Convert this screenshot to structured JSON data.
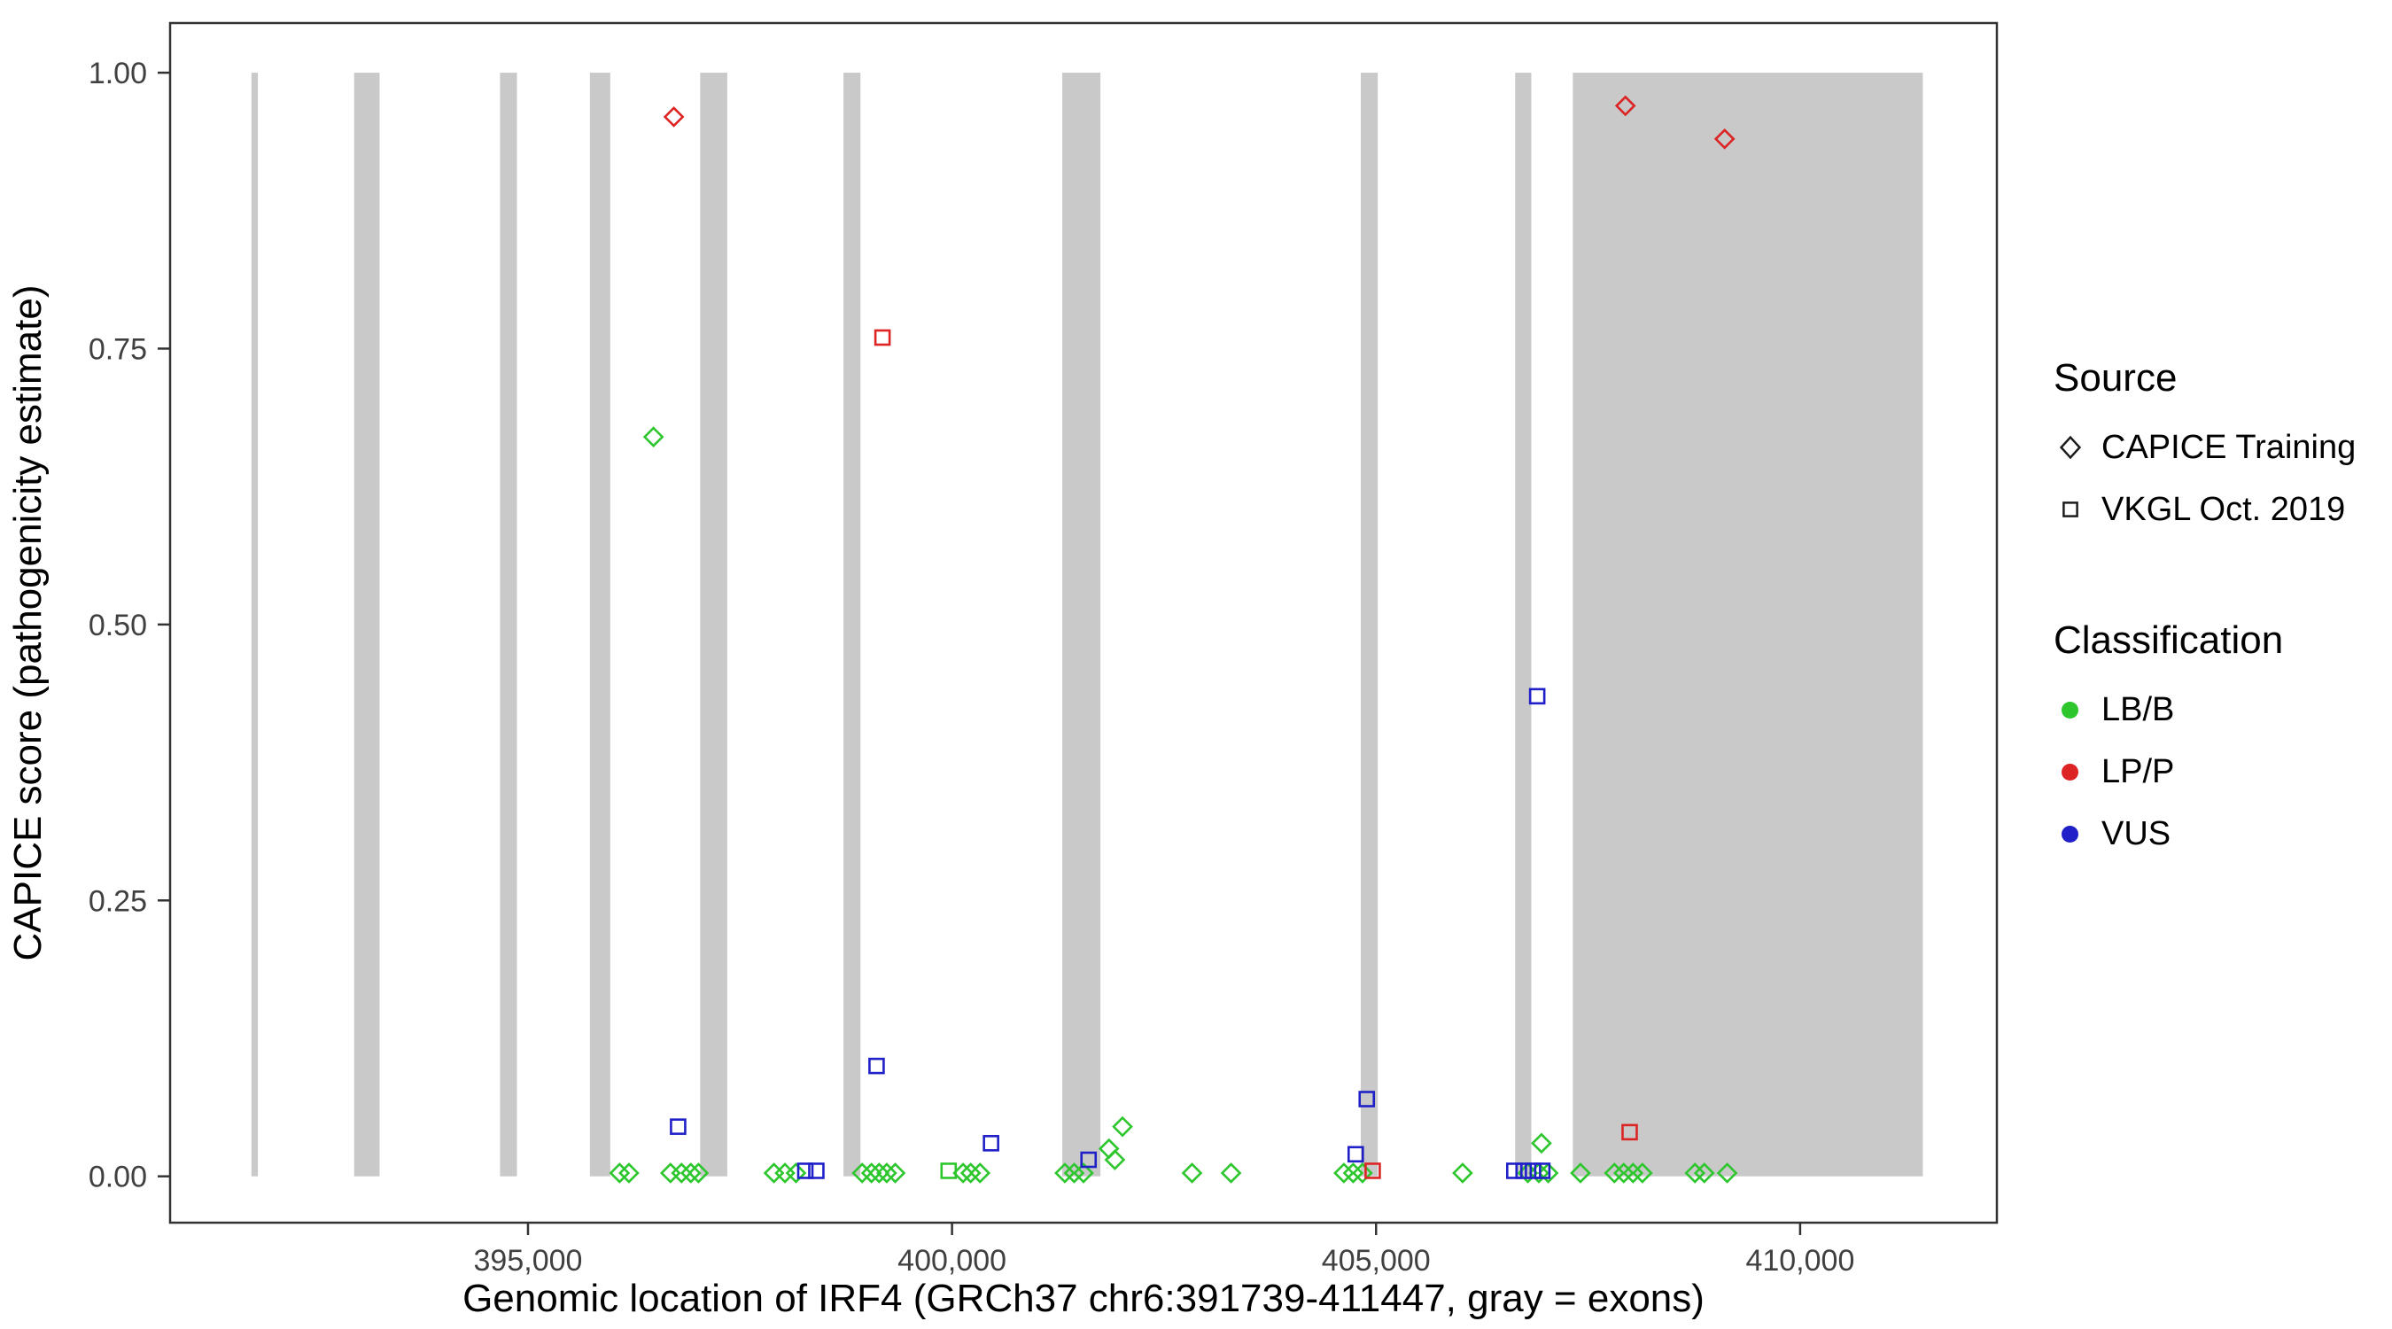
{
  "chart_data": {
    "type": "scatter",
    "title": "",
    "xlabel": "Genomic location of IRF4 (GRCh37 chr6:391739-411447, gray = exons)",
    "ylabel": "CAPICE score (pathogenicity estimate)",
    "xlim": [
      390780,
      412320
    ],
    "ylim": [
      -0.042,
      1.045
    ],
    "grid": "off",
    "xticks": [
      {
        "value": 395000,
        "label": "395,000"
      },
      {
        "value": 400000,
        "label": "400,000"
      },
      {
        "value": 405000,
        "label": "405,000"
      },
      {
        "value": 410000,
        "label": "410,000"
      }
    ],
    "yticks": [
      {
        "value": 0.0,
        "label": "0.00"
      },
      {
        "value": 0.25,
        "label": "0.25"
      },
      {
        "value": 0.5,
        "label": "0.50"
      },
      {
        "value": 0.75,
        "label": "0.75"
      },
      {
        "value": 1.0,
        "label": "1.00"
      }
    ],
    "exon_color": "#C9C9C9",
    "exon_band_yrange": [
      0,
      1
    ],
    "exons": [
      [
        391739,
        391815
      ],
      [
        392950,
        393250
      ],
      [
        394670,
        394870
      ],
      [
        395730,
        395970
      ],
      [
        397030,
        397350
      ],
      [
        398720,
        398920
      ],
      [
        401300,
        401750
      ],
      [
        404820,
        405020
      ],
      [
        406640,
        406830
      ],
      [
        407320,
        411447
      ]
    ],
    "colors": {
      "LB/B": "#2DC62D",
      "LP/P": "#DC2424",
      "VUS": "#2020C8"
    },
    "series": [
      {
        "id": "training-lpp",
        "source": "CAPICE Training",
        "classification": "LP/P",
        "marker": "diamond",
        "points": [
          [
            396720,
            0.96
          ],
          [
            407940,
            0.97
          ],
          [
            409110,
            0.94
          ]
        ]
      },
      {
        "id": "training-lbb",
        "source": "CAPICE Training",
        "classification": "LB/B",
        "marker": "diamond",
        "points": [
          [
            396480,
            0.67
          ],
          [
            401850,
            0.025
          ],
          [
            401920,
            0.015
          ],
          [
            402010,
            0.045
          ],
          [
            406950,
            0.03
          ],
          [
            396080,
            0.003
          ],
          [
            396190,
            0.003
          ],
          [
            396680,
            0.003
          ],
          [
            396810,
            0.003
          ],
          [
            396920,
            0.003
          ],
          [
            397010,
            0.003
          ],
          [
            397900,
            0.003
          ],
          [
            398030,
            0.003
          ],
          [
            398160,
            0.003
          ],
          [
            398940,
            0.003
          ],
          [
            399050,
            0.003
          ],
          [
            399140,
            0.003
          ],
          [
            399230,
            0.003
          ],
          [
            399330,
            0.003
          ],
          [
            400130,
            0.003
          ],
          [
            400220,
            0.003
          ],
          [
            400330,
            0.003
          ],
          [
            401330,
            0.003
          ],
          [
            401440,
            0.003
          ],
          [
            401550,
            0.003
          ],
          [
            402830,
            0.003
          ],
          [
            403290,
            0.003
          ],
          [
            404620,
            0.003
          ],
          [
            404730,
            0.003
          ],
          [
            404840,
            0.003
          ],
          [
            406020,
            0.003
          ],
          [
            406790,
            0.003
          ],
          [
            406920,
            0.003
          ],
          [
            407030,
            0.003
          ],
          [
            407410,
            0.003
          ],
          [
            407810,
            0.003
          ],
          [
            407920,
            0.003
          ],
          [
            408030,
            0.003
          ],
          [
            408140,
            0.003
          ],
          [
            408760,
            0.003
          ],
          [
            408870,
            0.003
          ],
          [
            409140,
            0.003
          ]
        ]
      },
      {
        "id": "vkgl-lbb",
        "source": "VKGL Oct. 2019",
        "classification": "LB/B",
        "marker": "square",
        "points": [
          [
            399960,
            0.005
          ]
        ]
      },
      {
        "id": "vkgl-lpp",
        "source": "VKGL Oct. 2019",
        "classification": "LP/P",
        "marker": "square",
        "points": [
          [
            399180,
            0.76
          ],
          [
            404960,
            0.005
          ],
          [
            407990,
            0.04
          ]
        ]
      },
      {
        "id": "vkgl-vus",
        "source": "VKGL Oct. 2019",
        "classification": "VUS",
        "marker": "square",
        "points": [
          [
            396770,
            0.045
          ],
          [
            398270,
            0.005
          ],
          [
            398400,
            0.005
          ],
          [
            399110,
            0.1
          ],
          [
            400460,
            0.03
          ],
          [
            401610,
            0.015
          ],
          [
            404760,
            0.02
          ],
          [
            404890,
            0.07
          ],
          [
            406630,
            0.005
          ],
          [
            406740,
            0.005
          ],
          [
            406850,
            0.005
          ],
          [
            406960,
            0.005
          ],
          [
            406900,
            0.435
          ]
        ]
      }
    ]
  },
  "legend": {
    "source": {
      "title": "Source",
      "items": [
        {
          "label": "CAPICE Training",
          "marker": "diamond"
        },
        {
          "label": "VKGL Oct. 2019",
          "marker": "square"
        }
      ]
    },
    "classification": {
      "title": "Classification",
      "items": [
        {
          "label": "LB/B",
          "color": "#2DC62D"
        },
        {
          "label": "LP/P",
          "color": "#DC2424"
        },
        {
          "label": "VUS",
          "color": "#2020C8"
        }
      ]
    }
  }
}
